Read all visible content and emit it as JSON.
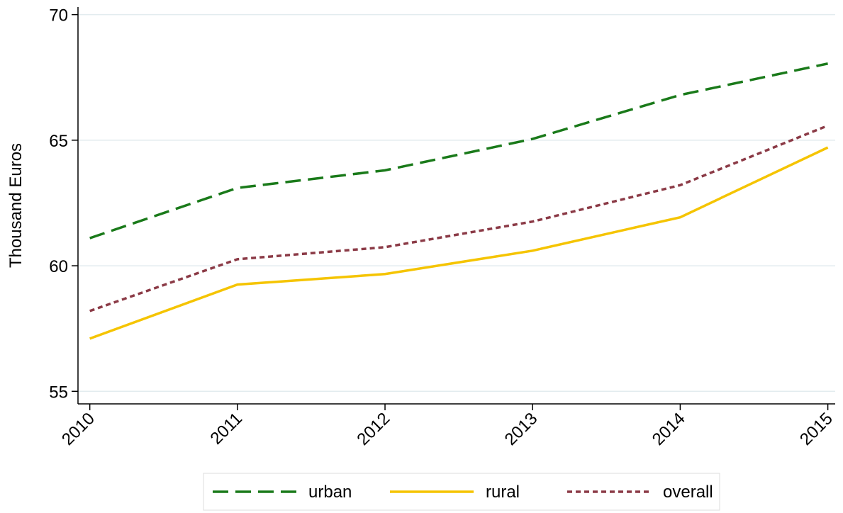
{
  "chart_data": {
    "type": "line",
    "ylabel": "Thousand Euros",
    "x": [
      2010,
      2011,
      2012,
      2013,
      2014,
      2015
    ],
    "series": [
      {
        "name": "urban",
        "color": "#1a7a1a",
        "line_style": "dashed",
        "values": [
          61.1,
          63.1,
          63.8,
          65.05,
          66.8,
          68.05
        ]
      },
      {
        "name": "rural",
        "color": "#f5c400",
        "line_style": "solid",
        "values": [
          57.1,
          59.25,
          59.67,
          60.6,
          61.93,
          64.71
        ]
      },
      {
        "name": "overall",
        "color": "#8b3a46",
        "line_style": "dotted",
        "values": [
          58.2,
          60.26,
          60.74,
          61.76,
          63.21,
          65.58
        ]
      }
    ],
    "xlim": [
      2009.92,
      2015.05
    ],
    "xticks": [
      2010,
      2011,
      2012,
      2013,
      2014,
      2015
    ],
    "ylim": [
      54.5,
      70.3
    ],
    "yticks": [
      55,
      60,
      65,
      70
    ],
    "grid": true,
    "legend": "bottom"
  }
}
